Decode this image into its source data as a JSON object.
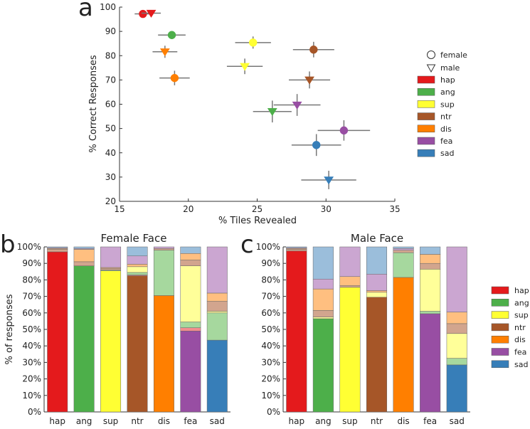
{
  "panel_letters": {
    "a": "a",
    "b": "b",
    "c": "c"
  },
  "colors": {
    "hap": "#e41a1c",
    "ang": "#4daf4a",
    "sup": "#ffff33",
    "ntr": "#a65628",
    "dis": "#ff7f00",
    "fea": "#984ea3",
    "sad": "#377eb8"
  },
  "light_colors": {
    "hap": "#f28e8e",
    "ang": "#a6d89e",
    "sup": "#ffff99",
    "ntr": "#d2a58e",
    "dis": "#ffbf80",
    "fea": "#cba6d1",
    "sad": "#9bbedb"
  },
  "chart_data": [
    {
      "type": "scatter",
      "panel": "a",
      "xlabel": "% Tiles Revealed",
      "ylabel": "% Correct Responses",
      "xlim": [
        15,
        35
      ],
      "ylim": [
        20,
        100
      ],
      "xticks": [
        "15",
        "20",
        "25",
        "30",
        "35"
      ],
      "yticks": [
        "20",
        "30",
        "40",
        "50",
        "60",
        "70",
        "80",
        "90",
        "100"
      ],
      "legend": {
        "position": "right",
        "markers": [
          {
            "label": "female",
            "marker": "circle"
          },
          {
            "label": "male",
            "marker": "triangle-down"
          }
        ],
        "colors": [
          "hap",
          "ang",
          "sup",
          "ntr",
          "dis",
          "fea",
          "sad"
        ]
      },
      "series": [
        {
          "name": "female",
          "marker": "circle",
          "points": [
            {
              "emotion": "hap",
              "x": 16.7,
              "y": 97.2,
              "xerr": 0.6,
              "yerr": 0.8
            },
            {
              "emotion": "ang",
              "x": 18.8,
              "y": 88.5,
              "xerr": 1.0,
              "yerr": 1.5
            },
            {
              "emotion": "sup",
              "x": 24.7,
              "y": 85.4,
              "xerr": 1.3,
              "yerr": 2.5
            },
            {
              "emotion": "ntr",
              "x": 29.1,
              "y": 82.5,
              "xerr": 1.5,
              "yerr": 3.2
            },
            {
              "emotion": "dis",
              "x": 19.0,
              "y": 70.8,
              "xerr": 1.1,
              "yerr": 3.0
            },
            {
              "emotion": "fea",
              "x": 31.3,
              "y": 49.2,
              "xerr": 1.9,
              "yerr": 4.2
            },
            {
              "emotion": "sad",
              "x": 29.3,
              "y": 43.2,
              "xerr": 1.8,
              "yerr": 4.5
            }
          ]
        },
        {
          "name": "male",
          "marker": "triangle-down",
          "points": [
            {
              "emotion": "hap",
              "x": 17.3,
              "y": 97.5,
              "xerr": 0.7,
              "yerr": 0.8
            },
            {
              "emotion": "ang",
              "x": 26.1,
              "y": 57.0,
              "xerr": 1.4,
              "yerr": 4.5
            },
            {
              "emotion": "sup",
              "x": 24.1,
              "y": 75.6,
              "xerr": 1.3,
              "yerr": 3.2
            },
            {
              "emotion": "ntr",
              "x": 28.8,
              "y": 70.0,
              "xerr": 1.5,
              "yerr": 3.5
            },
            {
              "emotion": "dis",
              "x": 18.3,
              "y": 81.6,
              "xerr": 0.9,
              "yerr": 2.5
            },
            {
              "emotion": "fea",
              "x": 27.9,
              "y": 59.7,
              "xerr": 1.7,
              "yerr": 4.5
            },
            {
              "emotion": "sad",
              "x": 30.2,
              "y": 28.8,
              "xerr": 2.0,
              "yerr": 3.8
            }
          ]
        }
      ]
    },
    {
      "type": "bar",
      "stacked": true,
      "panel": "b",
      "title": "Female Face",
      "ylabel": "% of responses",
      "categories": [
        "hap",
        "ang",
        "sup",
        "ntr",
        "dis",
        "fea",
        "sad"
      ],
      "yticks": [
        "0%",
        "10%",
        "20%",
        "30%",
        "40%",
        "50%",
        "60%",
        "70%",
        "80%",
        "90%",
        "100%"
      ],
      "stack_order": [
        "correct",
        "hap",
        "ang",
        "sup",
        "ntr",
        "dis",
        "fea",
        "sad"
      ],
      "stacks": [
        {
          "category": "hap",
          "correct": 97.0,
          "segments": {
            "ntr": 1.5,
            "dis": 0.5,
            "fea": 0.5,
            "sad": 0.5
          }
        },
        {
          "category": "ang",
          "correct": 88.5,
          "segments": {
            "ntr": 2.5,
            "dis": 7.5,
            "fea": 0.5,
            "sad": 1.0
          }
        },
        {
          "category": "sup",
          "correct": 85.5,
          "segments": {
            "ang": 0.5,
            "ntr": 1.0,
            "dis": 0.5,
            "fea": 12.5
          }
        },
        {
          "category": "ntr",
          "correct": 82.5,
          "segments": {
            "hap": 0.5,
            "ang": 1.5,
            "sup": 3.5,
            "dis": 1.5,
            "fea": 5.0,
            "sad": 5.5
          }
        },
        {
          "category": "dis",
          "correct": 70.5,
          "segments": {
            "ang": 27.5,
            "ntr": 1.0,
            "fea": 1.0
          }
        },
        {
          "category": "fea",
          "correct": 49.0,
          "segments": {
            "hap": 2.0,
            "ang": 3.5,
            "sup": 34.0,
            "ntr": 3.5,
            "dis": 4.0,
            "sad": 4.0
          }
        },
        {
          "category": "sad",
          "correct": 43.5,
          "segments": {
            "ang": 16.5,
            "sup": 1.0,
            "ntr": 6.0,
            "dis": 5.0,
            "fea": 28.0
          }
        }
      ]
    },
    {
      "type": "bar",
      "stacked": true,
      "panel": "c",
      "title": "Male Face",
      "categories": [
        "hap",
        "ang",
        "sup",
        "ntr",
        "dis",
        "fea",
        "sad"
      ],
      "yticks": [
        "0%",
        "10%",
        "20%",
        "30%",
        "40%",
        "50%",
        "60%",
        "70%",
        "80%",
        "90%",
        "100%"
      ],
      "legend": {
        "position": "right",
        "labels": [
          "hap",
          "ang",
          "sup",
          "ntr",
          "dis",
          "fea",
          "sad"
        ]
      },
      "stack_order": [
        "correct",
        "hap",
        "ang",
        "sup",
        "ntr",
        "dis",
        "fea",
        "sad"
      ],
      "stacks": [
        {
          "category": "hap",
          "correct": 97.5,
          "segments": {
            "ntr": 1.0,
            "dis": 0.5,
            "fea": 0.5,
            "sad": 0.5
          }
        },
        {
          "category": "ang",
          "correct": 56.5,
          "segments": {
            "sup": 1.0,
            "ntr": 4.0,
            "dis": 13.0,
            "fea": 6.0,
            "sad": 19.5
          }
        },
        {
          "category": "sup",
          "correct": 75.5,
          "segments": {
            "ntr": 1.0,
            "dis": 5.5,
            "fea": 18.0
          }
        },
        {
          "category": "ntr",
          "correct": 69.5,
          "segments": {
            "sup": 3.0,
            "dis": 1.0,
            "fea": 10.0,
            "sad": 16.5
          }
        },
        {
          "category": "dis",
          "correct": 81.5,
          "segments": {
            "ang": 15.0,
            "ntr": 1.5,
            "fea": 1.0,
            "sad": 1.0
          }
        },
        {
          "category": "fea",
          "correct": 59.5,
          "segments": {
            "ang": 1.5,
            "sup": 25.5,
            "ntr": 3.5,
            "dis": 5.5,
            "sad": 4.5
          }
        },
        {
          "category": "sad",
          "correct": 28.5,
          "segments": {
            "ang": 4.0,
            "sup": 15.0,
            "ntr": 6.0,
            "dis": 7.0,
            "fea": 39.5
          }
        }
      ]
    }
  ]
}
